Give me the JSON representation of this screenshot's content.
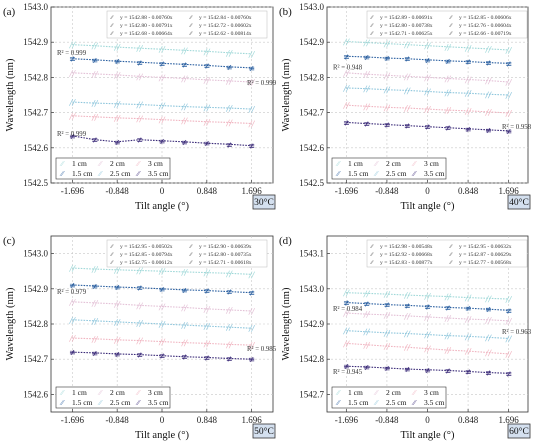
{
  "chart_data": [
    {
      "type": "line",
      "panel_label": "(a)",
      "temperature": "30°C",
      "xlabel": "Tilt angle (°)",
      "ylabel": "Wavelength (nm)",
      "xlim": [
        -2.1,
        2.1
      ],
      "ylim": [
        1542.5,
        1543.0
      ],
      "x_ticks": [
        "-1.696",
        "-0.848",
        "0",
        "0.848",
        "1.696"
      ],
      "y_ticks": [
        "1542.5",
        "1542.6",
        "1542.7",
        "1542.8",
        "1542.9",
        "1543.0"
      ],
      "x": [
        -1.696,
        -1.272,
        -0.848,
        -0.424,
        0,
        0.424,
        0.848,
        1.272,
        1.696
      ],
      "equations": [
        "y = 1542.88 - 0.00760x",
        "y = 1542.84 - 0.00760x",
        "y = 1542.80 - 0.00791x",
        "y = 1542.72 - 0.00602x",
        "y = 1542.68 - 0.00664x",
        "y = 1542.62 - 0.00814x"
      ],
      "series": [
        {
          "name": "1 cm",
          "color": "#9fd8d8",
          "values": [
            1542.893,
            1542.89,
            1542.886,
            1542.883,
            1542.88,
            1542.877,
            1542.874,
            1542.87,
            1542.867
          ]
        },
        {
          "name": "1.5 cm",
          "color": "#2a5fa0",
          "values": [
            1542.853,
            1542.85,
            1542.846,
            1542.843,
            1542.84,
            1542.837,
            1542.834,
            1542.83,
            1542.827
          ]
        },
        {
          "name": "2 cm",
          "color": "#e3c0d6",
          "values": [
            1542.813,
            1542.81,
            1542.807,
            1542.803,
            1542.8,
            1542.797,
            1542.793,
            1542.79,
            1542.787
          ]
        },
        {
          "name": "2.5 cm",
          "color": "#8ec6dc",
          "values": [
            1542.73,
            1542.727,
            1542.725,
            1542.723,
            1542.72,
            1542.717,
            1542.715,
            1542.713,
            1542.71
          ]
        },
        {
          "name": "3 cm",
          "color": "#f0b4c0",
          "values": [
            1542.691,
            1542.688,
            1542.685,
            1542.683,
            1542.68,
            1542.677,
            1542.674,
            1542.672,
            1542.669
          ]
        },
        {
          "name": "3.5 cm",
          "color": "#3a2a78",
          "values": [
            1542.634,
            1542.623,
            1542.617,
            1542.623,
            1542.62,
            1542.617,
            1542.613,
            1542.61,
            1542.606
          ]
        }
      ],
      "r2_labels": [
        "R² = 0.999",
        "R² = 0.999",
        "R² = 0.999"
      ],
      "r2_values": [
        1542.864,
        1542.778,
        1542.633
      ],
      "legend": "bottom-left"
    },
    {
      "type": "line",
      "panel_label": "(b)",
      "temperature": "40°C",
      "xlabel": "Tilt angle (°)",
      "ylabel": "Wavelength (nm)",
      "xlim": [
        -2.1,
        2.1
      ],
      "ylim": [
        1542.5,
        1543.0
      ],
      "x_ticks": [
        "-1.696",
        "-0.848",
        "0",
        "0.848",
        "1.696"
      ],
      "y_ticks": [
        "1542.5",
        "1542.6",
        "1542.7",
        "1542.8",
        "1542.9",
        "1543.0"
      ],
      "x": [
        -1.696,
        -1.272,
        -0.848,
        -0.424,
        0,
        0.424,
        0.848,
        1.272,
        1.696
      ],
      "equations": [
        "y = 1542.89 - 0.00691x",
        "y = 1542.85 - 0.00606x",
        "y = 1542.80 - 0.00738x",
        "y = 1542.76 - 0.00604x",
        "y = 1542.71 - 0.00625x",
        "y = 1542.66 - 0.00719x"
      ],
      "series": [
        {
          "name": "1 cm",
          "color": "#9fd8d8",
          "values": [
            1542.902,
            1542.899,
            1542.896,
            1542.893,
            1542.89,
            1542.887,
            1542.884,
            1542.881,
            1542.878
          ]
        },
        {
          "name": "1.5 cm",
          "color": "#2a5fa0",
          "values": [
            1542.86,
            1542.858,
            1542.855,
            1542.853,
            1542.85,
            1542.847,
            1542.845,
            1542.842,
            1542.84
          ]
        },
        {
          "name": "2 cm",
          "color": "#e3c0d6",
          "values": [
            1542.813,
            1542.809,
            1542.806,
            1542.803,
            1542.8,
            1542.797,
            1542.794,
            1542.791,
            1542.787
          ]
        },
        {
          "name": "2.5 cm",
          "color": "#8ec6dc",
          "values": [
            1542.77,
            1542.768,
            1542.765,
            1542.763,
            1542.76,
            1542.757,
            1542.755,
            1542.752,
            1542.75
          ]
        },
        {
          "name": "3 cm",
          "color": "#f0b4c0",
          "values": [
            1542.721,
            1542.718,
            1542.715,
            1542.713,
            1542.71,
            1542.707,
            1542.705,
            1542.702,
            1542.699
          ]
        },
        {
          "name": "3.5 cm",
          "color": "#3a2a78",
          "values": [
            1542.672,
            1542.669,
            1542.666,
            1542.663,
            1542.66,
            1542.657,
            1542.654,
            1542.651,
            1542.648
          ]
        }
      ],
      "r2_labels": [
        "R² = 0.948",
        "R² = 0.958"
      ],
      "r2_values": [
        1542.822,
        1542.654
      ],
      "legend": "bottom-left"
    },
    {
      "type": "line",
      "panel_label": "(c)",
      "temperature": "50°C",
      "xlabel": "Tilt angle (°)",
      "ylabel": "Wavelength (nm)",
      "xlim": [
        -2.1,
        2.1
      ],
      "ylim": [
        1542.55,
        1543.05
      ],
      "x_ticks": [
        "-1.696",
        "-0.848",
        "0",
        "0.848",
        "1.696"
      ],
      "y_ticks": [
        "1542.6",
        "1542.7",
        "1542.8",
        "1542.9",
        "1543.0"
      ],
      "x": [
        -1.696,
        -1.272,
        -0.848,
        -0.424,
        0,
        0.424,
        0.848,
        1.272,
        1.696
      ],
      "equations": [
        "y = 1542.95 - 0.00502x",
        "y = 1542.90 - 0.00639x",
        "y = 1542.85 - 0.00794x",
        "y = 1542.80 - 0.00735x",
        "y = 1542.75 - 0.00612x",
        "y = 1542.71 - 0.00618x"
      ],
      "series": [
        {
          "name": "1 cm",
          "color": "#9fd8d8",
          "values": [
            1542.959,
            1542.956,
            1542.954,
            1542.952,
            1542.95,
            1542.948,
            1542.946,
            1542.944,
            1542.941
          ]
        },
        {
          "name": "1.5 cm",
          "color": "#2a5fa0",
          "values": [
            1542.911,
            1542.908,
            1542.905,
            1542.903,
            1542.9,
            1542.897,
            1542.895,
            1542.892,
            1542.889
          ]
        },
        {
          "name": "2 cm",
          "color": "#e3c0d6",
          "values": [
            1542.863,
            1542.86,
            1542.857,
            1542.853,
            1542.85,
            1542.847,
            1542.843,
            1542.84,
            1542.837
          ]
        },
        {
          "name": "2.5 cm",
          "color": "#8ec6dc",
          "values": [
            1542.812,
            1542.809,
            1542.806,
            1542.803,
            1542.8,
            1542.797,
            1542.794,
            1542.791,
            1542.788
          ]
        },
        {
          "name": "3 cm",
          "color": "#f0b4c0",
          "values": [
            1542.76,
            1542.758,
            1542.755,
            1542.753,
            1542.75,
            1542.747,
            1542.745,
            1542.742,
            1542.74
          ]
        },
        {
          "name": "3.5 cm",
          "color": "#3a2a78",
          "values": [
            1542.72,
            1542.718,
            1542.715,
            1542.713,
            1542.71,
            1542.707,
            1542.705,
            1542.702,
            1542.7
          ]
        }
      ],
      "r2_labels": [
        "R² = 0.979",
        "R² = 0.985"
      ],
      "r2_values": [
        1542.885,
        1542.723
      ],
      "legend": "bottom-left"
    },
    {
      "type": "line",
      "panel_label": "(d)",
      "temperature": "60°C",
      "xlabel": "Tilt angle (°)",
      "ylabel": "Wavelength (nm)",
      "xlim": [
        -2.1,
        2.1
      ],
      "ylim": [
        1542.65,
        1543.15
      ],
      "x_ticks": [
        "-1.696",
        "-0.848",
        "0",
        "0.848",
        "1.696"
      ],
      "y_ticks": [
        "1542.7",
        "1542.8",
        "1542.9",
        "1543.0",
        "1543.1"
      ],
      "x": [
        -1.696,
        -1.272,
        -0.848,
        -0.424,
        0,
        0.424,
        0.848,
        1.272,
        1.696
      ],
      "equations": [
        "y = 1542.98 - 0.00548x",
        "y = 1542.95 - 0.00632x",
        "y = 1542.92 - 0.00668x",
        "y = 1542.87 - 0.00629x",
        "y = 1542.83 - 0.00877x",
        "y = 1542.77 - 0.00568x"
      ],
      "series": [
        {
          "name": "1 cm",
          "color": "#9fd8d8",
          "values": [
            1542.989,
            1542.987,
            1542.985,
            1542.982,
            1542.98,
            1542.978,
            1542.975,
            1542.973,
            1542.971
          ]
        },
        {
          "name": "1.5 cm",
          "color": "#2a5fa0",
          "values": [
            1542.961,
            1542.958,
            1542.955,
            1542.953,
            1542.95,
            1542.947,
            1542.945,
            1542.942,
            1542.939
          ]
        },
        {
          "name": "2 cm",
          "color": "#e3c0d6",
          "values": [
            1542.931,
            1542.928,
            1542.926,
            1542.923,
            1542.92,
            1542.917,
            1542.914,
            1542.912,
            1542.909
          ]
        },
        {
          "name": "2.5 cm",
          "color": "#8ec6dc",
          "values": [
            1542.881,
            1542.878,
            1542.875,
            1542.873,
            1542.87,
            1542.867,
            1542.865,
            1542.862,
            1542.859
          ]
        },
        {
          "name": "3 cm",
          "color": "#f0b4c0",
          "values": [
            1542.845,
            1542.841,
            1542.837,
            1542.834,
            1542.83,
            1542.826,
            1542.823,
            1542.819,
            1542.815
          ]
        },
        {
          "name": "3.5 cm",
          "color": "#3a2a78",
          "values": [
            1542.78,
            1542.778,
            1542.775,
            1542.772,
            1542.77,
            1542.768,
            1542.765,
            1542.762,
            1542.76
          ]
        }
      ],
      "r2_labels": [
        "R² = 0.984",
        "R² = 0.963",
        "R² = 0.945"
      ],
      "r2_values": [
        1542.937,
        1542.872,
        1542.758
      ],
      "legend": "bottom-left"
    }
  ]
}
